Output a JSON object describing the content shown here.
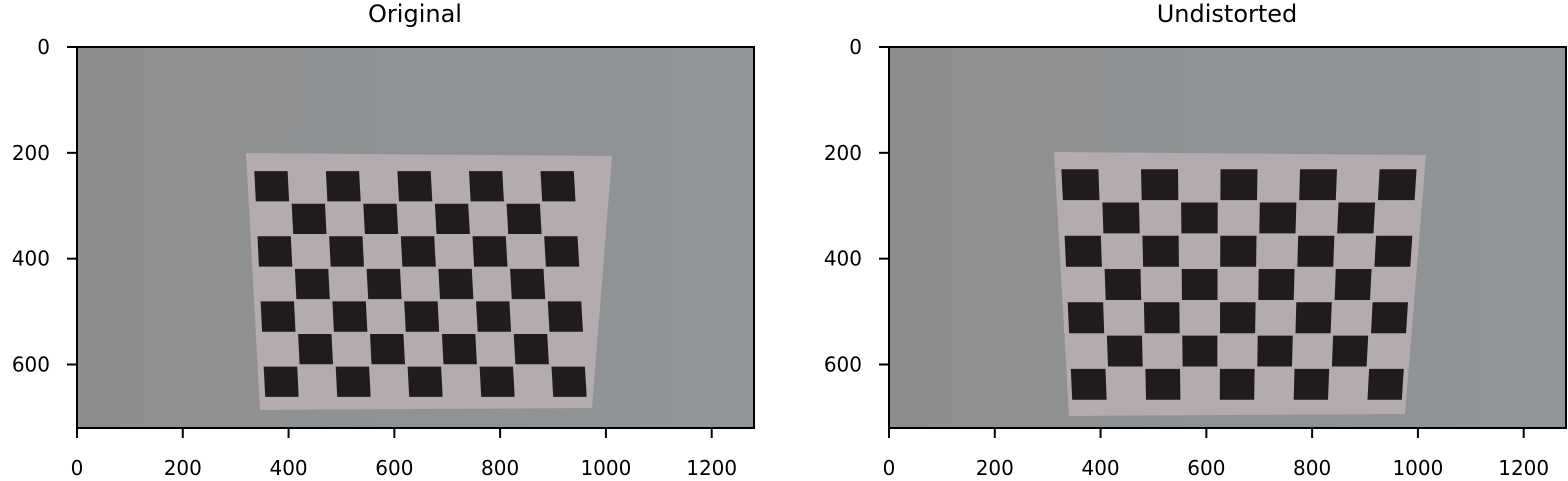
{
  "figure": {
    "panels": [
      {
        "title": "Original",
        "x_ticks": [
          "0",
          "200",
          "400",
          "600",
          "800",
          "1000",
          "1200"
        ],
        "y_ticks": [
          "0",
          "200",
          "400",
          "600"
        ],
        "x_tick_values": [
          0,
          200,
          400,
          600,
          800,
          1000,
          1200
        ],
        "y_tick_values": [
          0,
          200,
          400,
          600
        ],
        "x_range": [
          0,
          1280
        ],
        "y_range": [
          0,
          720
        ],
        "image": "photo of a black-and-white checkerboard calibration pattern taped to a grey wall"
      },
      {
        "title": "Undistorted",
        "x_ticks": [
          "0",
          "200",
          "400",
          "600",
          "800",
          "1000",
          "1200"
        ],
        "y_ticks": [
          "0",
          "200",
          "400",
          "600"
        ],
        "x_tick_values": [
          0,
          200,
          400,
          600,
          800,
          1000,
          1200
        ],
        "y_tick_values": [
          0,
          200,
          400,
          600
        ],
        "x_range": [
          0,
          1280
        ],
        "y_range": [
          0,
          720
        ],
        "image": "same checkerboard photo after lens distortion correction"
      }
    ],
    "colors": {
      "wall": "#8f9295",
      "wall_left": "#8c8e91",
      "paper": "#b3abad",
      "square": "#201b1e",
      "axis": "#000000"
    }
  }
}
